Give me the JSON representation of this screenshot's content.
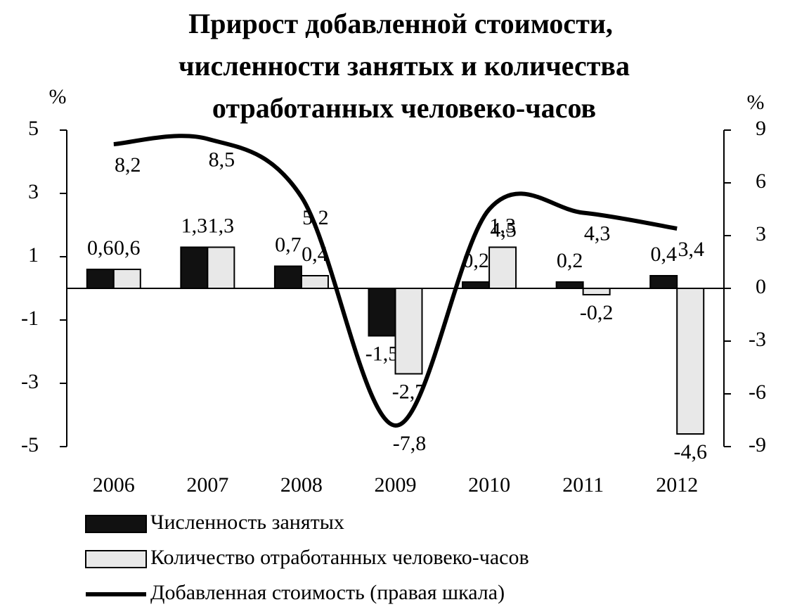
{
  "chart_data": {
    "type": "bar_line",
    "title": [
      "Прирост добавленной стоимости,",
      "численности занятых и количества",
      "отработанных человеко-часов"
    ],
    "ylabel": "%",
    "y2label": "%",
    "categories": [
      "2006",
      "2007",
      "2008",
      "2009",
      "2010",
      "2011",
      "2012"
    ],
    "series": [
      {
        "name": "Численность занятых",
        "type": "bar",
        "color": "#111111",
        "values": [
          0.6,
          1.3,
          0.7,
          -1.5,
          0.2,
          0.2,
          0.4
        ],
        "value_labels": [
          "0,6",
          "1,3",
          "0,7",
          "-1,5",
          "0,2",
          "0,2",
          "0,4"
        ]
      },
      {
        "name": "Количество отработанных человеко-часов",
        "type": "bar",
        "color": "#e8e8e8",
        "values": [
          0.6,
          1.3,
          0.4,
          -2.7,
          1.3,
          -0.2,
          -4.6
        ],
        "value_labels": [
          "0,6",
          "1,3",
          "0,4",
          "-2,7",
          "1,3",
          "-0,2",
          "-4,6"
        ]
      },
      {
        "name": "Добавленная стоимость (правая шкала)",
        "type": "line",
        "axis": "y2",
        "color": "#000000",
        "values": [
          8.2,
          8.5,
          5.2,
          -7.8,
          4.5,
          4.3,
          3.4
        ],
        "value_labels": [
          "8,2",
          "8,5",
          "5,2",
          "-7,8",
          "4,5",
          "4,3",
          "3,4"
        ]
      }
    ],
    "ylim": [
      -5,
      5
    ],
    "yticks": [
      -5,
      -3,
      -1,
      1,
      3,
      5
    ],
    "y2lim": [
      -9,
      9
    ],
    "y2ticks": [
      -9,
      -6,
      -3,
      0,
      3,
      6,
      9
    ]
  }
}
